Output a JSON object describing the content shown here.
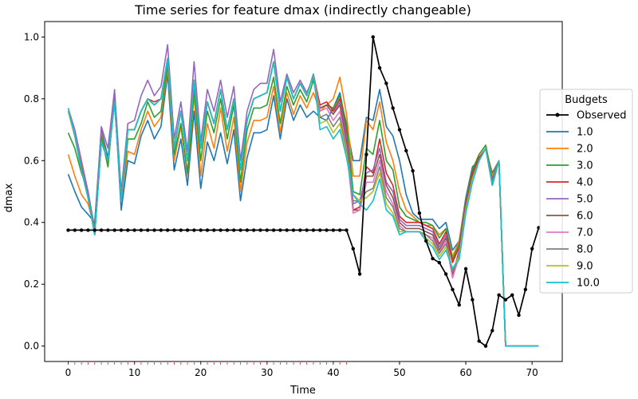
{
  "chart_data": {
    "type": "line",
    "title": "Time series for feature dmax (indirectly changeable)",
    "xlabel": "Time",
    "ylabel": "dmax",
    "xlim": [
      -3.55,
      74.55
    ],
    "ylim": [
      -0.05,
      1.05
    ],
    "xticks": [
      0,
      10,
      20,
      30,
      40,
      50,
      60,
      70
    ],
    "yticks": [
      0.0,
      0.2,
      0.4,
      0.6,
      0.8,
      1.0
    ],
    "grid": false,
    "legend": {
      "title": "Budgets",
      "placement": "right"
    },
    "observed": {
      "name": "Observed",
      "color": "#000000",
      "x": [
        0,
        1,
        2,
        3,
        4,
        5,
        6,
        7,
        8,
        9,
        10,
        11,
        12,
        13,
        14,
        15,
        16,
        17,
        18,
        19,
        20,
        21,
        22,
        23,
        24,
        25,
        26,
        27,
        28,
        29,
        30,
        31,
        32,
        33,
        34,
        35,
        36,
        37,
        38,
        39,
        40,
        41,
        42,
        43,
        44,
        45,
        46,
        47,
        48,
        49,
        50,
        51,
        52,
        53,
        54,
        55,
        56,
        57,
        58,
        59,
        60,
        61,
        62,
        63,
        64,
        65,
        66,
        67,
        68,
        69,
        70,
        71
      ],
      "y": [
        0.375,
        0.375,
        0.375,
        0.375,
        0.375,
        0.375,
        0.375,
        0.375,
        0.375,
        0.375,
        0.375,
        0.375,
        0.375,
        0.375,
        0.375,
        0.375,
        0.375,
        0.375,
        0.375,
        0.375,
        0.375,
        0.375,
        0.375,
        0.375,
        0.375,
        0.375,
        0.375,
        0.375,
        0.375,
        0.375,
        0.375,
        0.375,
        0.375,
        0.375,
        0.375,
        0.375,
        0.375,
        0.375,
        0.375,
        0.375,
        0.375,
        0.375,
        0.375,
        0.315,
        0.233,
        0.62,
        1.0,
        0.9,
        0.85,
        0.77,
        0.7,
        0.632,
        0.567,
        0.43,
        0.34,
        0.283,
        0.27,
        0.233,
        0.183,
        0.133,
        0.25,
        0.15,
        0.016,
        0.0,
        0.05,
        0.165,
        0.15,
        0.165,
        0.1,
        0.183,
        0.315,
        0.383
      ]
    },
    "budgets": [
      {
        "name": "1.0",
        "color": "#1f77b4",
        "offset": -0.06,
        "y": [
          0.556,
          0.5,
          0.45,
          0.426,
          0.4,
          0.7,
          0.61,
          0.8,
          0.44,
          0.6,
          0.59,
          0.68,
          0.73,
          0.67,
          0.71,
          0.88,
          0.57,
          0.67,
          0.52,
          0.76,
          0.51,
          0.66,
          0.6,
          0.69,
          0.59,
          0.7,
          0.47,
          0.61,
          0.69,
          0.69,
          0.7,
          0.81,
          0.67,
          0.8,
          0.73,
          0.78,
          0.74,
          0.76,
          0.74,
          0.73,
          0.77,
          0.82,
          0.71,
          0.6,
          0.6,
          0.74,
          0.73,
          0.83,
          0.71,
          0.68,
          0.6,
          0.49,
          0.43,
          0.41,
          0.41,
          0.41,
          0.38,
          0.4,
          0.31,
          0.34,
          0.48,
          0.58,
          0.6,
          0.64,
          0.56,
          0.6,
          0.0,
          0.0,
          0.0,
          0.0,
          0.0,
          0.0
        ]
      },
      {
        "name": "2.0",
        "color": "#ff7f0e",
        "offset": -0.05,
        "y": [
          0.62,
          0.55,
          0.49,
          0.46,
          0.38,
          0.69,
          0.58,
          0.81,
          0.47,
          0.63,
          0.62,
          0.7,
          0.76,
          0.71,
          0.74,
          0.9,
          0.6,
          0.71,
          0.55,
          0.81,
          0.55,
          0.72,
          0.64,
          0.77,
          0.63,
          0.74,
          0.5,
          0.66,
          0.73,
          0.73,
          0.74,
          0.84,
          0.69,
          0.82,
          0.75,
          0.81,
          0.77,
          0.82,
          0.76,
          0.78,
          0.8,
          0.87,
          0.75,
          0.55,
          0.55,
          0.73,
          0.7,
          0.79,
          0.66,
          0.6,
          0.5,
          0.44,
          0.42,
          0.4,
          0.39,
          0.39,
          0.36,
          0.38,
          0.29,
          0.34,
          0.47,
          0.57,
          0.62,
          0.65,
          0.55,
          0.6,
          0.0,
          0.0,
          0.0,
          0.0,
          0.0,
          0.0
        ]
      },
      {
        "name": "3.0",
        "color": "#2ca02c",
        "offset": -0.035,
        "y": [
          0.69,
          0.64,
          0.56,
          0.5,
          0.38,
          0.68,
          0.58,
          0.8,
          0.47,
          0.67,
          0.67,
          0.72,
          0.79,
          0.74,
          0.76,
          0.91,
          0.62,
          0.72,
          0.56,
          0.83,
          0.6,
          0.76,
          0.69,
          0.8,
          0.67,
          0.78,
          0.53,
          0.7,
          0.77,
          0.77,
          0.78,
          0.87,
          0.72,
          0.84,
          0.78,
          0.83,
          0.79,
          0.86,
          0.77,
          0.78,
          0.77,
          0.81,
          0.72,
          0.5,
          0.49,
          0.64,
          0.62,
          0.73,
          0.6,
          0.57,
          0.45,
          0.42,
          0.41,
          0.4,
          0.4,
          0.39,
          0.35,
          0.38,
          0.28,
          0.33,
          0.47,
          0.57,
          0.62,
          0.65,
          0.54,
          0.6,
          0.0,
          0.0,
          0.0,
          0.0,
          0.0,
          0.0
        ]
      },
      {
        "name": "4.0",
        "color": "#d62728",
        "offset": -0.02,
        "y": [
          0.76,
          0.68,
          0.58,
          0.48,
          0.36,
          0.66,
          0.6,
          0.79,
          0.47,
          0.7,
          0.7,
          0.76,
          0.8,
          0.79,
          0.8,
          0.93,
          0.64,
          0.76,
          0.6,
          0.86,
          0.64,
          0.79,
          0.72,
          0.83,
          0.7,
          0.8,
          0.57,
          0.73,
          0.8,
          0.81,
          0.82,
          0.92,
          0.76,
          0.87,
          0.8,
          0.85,
          0.81,
          0.88,
          0.78,
          0.79,
          0.76,
          0.8,
          0.69,
          0.44,
          0.45,
          0.58,
          0.56,
          0.67,
          0.56,
          0.52,
          0.42,
          0.4,
          0.4,
          0.4,
          0.39,
          0.38,
          0.33,
          0.37,
          0.27,
          0.32,
          0.46,
          0.56,
          0.61,
          0.64,
          0.53,
          0.6,
          0.0,
          0.0,
          0.0,
          0.0,
          0.0,
          0.0
        ]
      },
      {
        "name": "5.0",
        "color": "#9467bd",
        "offset": -0.01,
        "y": [
          0.77,
          0.7,
          0.6,
          0.5,
          0.37,
          0.71,
          0.64,
          0.83,
          0.5,
          0.72,
          0.73,
          0.81,
          0.86,
          0.81,
          0.84,
          0.975,
          0.67,
          0.79,
          0.63,
          0.92,
          0.66,
          0.83,
          0.76,
          0.86,
          0.74,
          0.84,
          0.6,
          0.76,
          0.83,
          0.85,
          0.85,
          0.96,
          0.79,
          0.88,
          0.82,
          0.86,
          0.82,
          0.87,
          0.77,
          0.78,
          0.75,
          0.79,
          0.68,
          0.46,
          0.47,
          0.56,
          0.57,
          0.64,
          0.53,
          0.5,
          0.41,
          0.39,
          0.39,
          0.39,
          0.38,
          0.37,
          0.32,
          0.36,
          0.23,
          0.31,
          0.45,
          0.55,
          0.6,
          0.64,
          0.53,
          0.6,
          0.0,
          0.0,
          0.0,
          0.0,
          0.0,
          0.0
        ]
      },
      {
        "name": "6.0",
        "color": "#8c564b",
        "offset": 0.0,
        "y": [
          0.76,
          0.68,
          0.57,
          0.48,
          0.36,
          0.66,
          0.6,
          0.79,
          0.47,
          0.7,
          0.7,
          0.76,
          0.8,
          0.78,
          0.8,
          0.93,
          0.64,
          0.76,
          0.6,
          0.86,
          0.64,
          0.79,
          0.72,
          0.83,
          0.7,
          0.8,
          0.57,
          0.73,
          0.8,
          0.81,
          0.82,
          0.92,
          0.76,
          0.87,
          0.8,
          0.85,
          0.81,
          0.88,
          0.77,
          0.78,
          0.75,
          0.78,
          0.66,
          0.44,
          0.44,
          0.55,
          0.55,
          0.62,
          0.52,
          0.48,
          0.4,
          0.38,
          0.38,
          0.38,
          0.37,
          0.36,
          0.31,
          0.35,
          0.23,
          0.3,
          0.44,
          0.55,
          0.6,
          0.64,
          0.52,
          0.6,
          0.0,
          0.0,
          0.0,
          0.0,
          0.0,
          0.0
        ]
      },
      {
        "name": "7.0",
        "color": "#e377c2",
        "offset": 0.005,
        "y": [
          0.76,
          0.68,
          0.57,
          0.48,
          0.36,
          0.66,
          0.6,
          0.79,
          0.47,
          0.7,
          0.7,
          0.76,
          0.8,
          0.78,
          0.8,
          0.93,
          0.64,
          0.76,
          0.6,
          0.86,
          0.64,
          0.79,
          0.72,
          0.83,
          0.7,
          0.8,
          0.57,
          0.73,
          0.8,
          0.81,
          0.82,
          0.92,
          0.76,
          0.87,
          0.8,
          0.85,
          0.81,
          0.88,
          0.76,
          0.77,
          0.73,
          0.76,
          0.64,
          0.43,
          0.44,
          0.53,
          0.53,
          0.6,
          0.5,
          0.46,
          0.39,
          0.37,
          0.37,
          0.37,
          0.36,
          0.35,
          0.3,
          0.34,
          0.22,
          0.29,
          0.44,
          0.54,
          0.6,
          0.64,
          0.52,
          0.6,
          0.0,
          0.0,
          0.0,
          0.0,
          0.0,
          0.0
        ]
      },
      {
        "name": "8.0",
        "color": "#7f7f7f",
        "offset": 0.01,
        "y": [
          0.76,
          0.68,
          0.57,
          0.48,
          0.36,
          0.66,
          0.6,
          0.79,
          0.47,
          0.7,
          0.7,
          0.76,
          0.8,
          0.78,
          0.8,
          0.93,
          0.64,
          0.76,
          0.6,
          0.86,
          0.64,
          0.79,
          0.72,
          0.83,
          0.7,
          0.8,
          0.57,
          0.73,
          0.8,
          0.81,
          0.82,
          0.92,
          0.76,
          0.87,
          0.8,
          0.85,
          0.81,
          0.88,
          0.74,
          0.75,
          0.71,
          0.74,
          0.63,
          0.47,
          0.47,
          0.5,
          0.51,
          0.58,
          0.48,
          0.45,
          0.38,
          0.37,
          0.37,
          0.37,
          0.36,
          0.34,
          0.3,
          0.33,
          0.24,
          0.29,
          0.44,
          0.54,
          0.6,
          0.64,
          0.52,
          0.6,
          0.0,
          0.0,
          0.0,
          0.0,
          0.0,
          0.0
        ]
      },
      {
        "name": "9.0",
        "color": "#bcbd22",
        "offset": 0.015,
        "y": [
          0.76,
          0.68,
          0.57,
          0.48,
          0.36,
          0.66,
          0.6,
          0.79,
          0.47,
          0.7,
          0.7,
          0.76,
          0.8,
          0.78,
          0.8,
          0.93,
          0.64,
          0.76,
          0.6,
          0.86,
          0.64,
          0.79,
          0.72,
          0.83,
          0.7,
          0.8,
          0.57,
          0.73,
          0.8,
          0.81,
          0.82,
          0.92,
          0.76,
          0.87,
          0.8,
          0.85,
          0.81,
          0.88,
          0.72,
          0.73,
          0.69,
          0.72,
          0.62,
          0.49,
          0.47,
          0.48,
          0.5,
          0.56,
          0.46,
          0.43,
          0.37,
          0.37,
          0.37,
          0.37,
          0.35,
          0.33,
          0.29,
          0.32,
          0.25,
          0.29,
          0.44,
          0.54,
          0.6,
          0.64,
          0.52,
          0.6,
          0.0,
          0.0,
          0.0,
          0.0,
          0.0,
          0.0
        ]
      },
      {
        "name": "10.0",
        "color": "#17becf",
        "offset": 0.02,
        "y": [
          0.77,
          0.68,
          0.57,
          0.48,
          0.36,
          0.66,
          0.6,
          0.79,
          0.47,
          0.7,
          0.7,
          0.76,
          0.8,
          0.78,
          0.8,
          0.93,
          0.64,
          0.76,
          0.6,
          0.86,
          0.64,
          0.79,
          0.72,
          0.83,
          0.7,
          0.8,
          0.57,
          0.73,
          0.8,
          0.81,
          0.82,
          0.92,
          0.76,
          0.87,
          0.8,
          0.85,
          0.81,
          0.88,
          0.7,
          0.71,
          0.67,
          0.7,
          0.61,
          0.49,
          0.46,
          0.44,
          0.47,
          0.54,
          0.44,
          0.42,
          0.36,
          0.37,
          0.37,
          0.37,
          0.34,
          0.32,
          0.28,
          0.31,
          0.25,
          0.28,
          0.43,
          0.53,
          0.6,
          0.64,
          0.52,
          0.6,
          0.0,
          0.0,
          0.0,
          0.0,
          0.0,
          0.0
        ]
      }
    ]
  }
}
